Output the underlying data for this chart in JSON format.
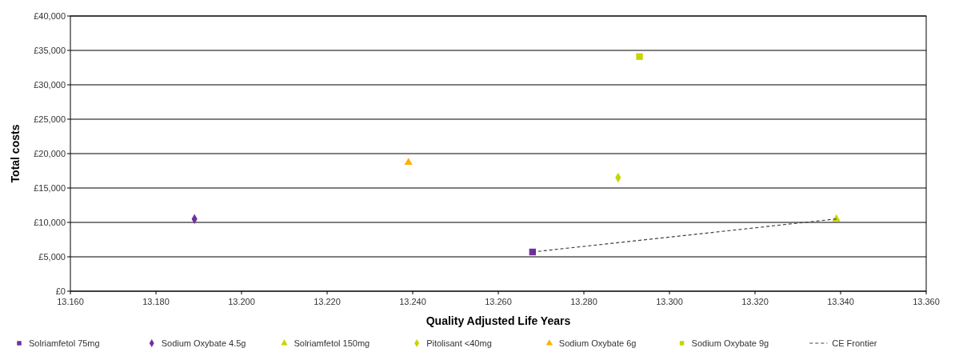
{
  "chart_data": {
    "type": "scatter",
    "xlabel": "Quality Adjusted Life Years",
    "ylabel": "Total costs",
    "xlim": [
      13.16,
      13.36
    ],
    "xticks": [
      {
        "value": 13.16,
        "label": "13.160"
      },
      {
        "value": 13.18,
        "label": "13.180"
      },
      {
        "value": 13.2,
        "label": "13.200"
      },
      {
        "value": 13.22,
        "label": "13.220"
      },
      {
        "value": 13.24,
        "label": "13.240"
      },
      {
        "value": 13.26,
        "label": "13.260"
      },
      {
        "value": 13.28,
        "label": "13.280"
      },
      {
        "value": 13.3,
        "label": "13.300"
      },
      {
        "value": 13.32,
        "label": "13.320"
      },
      {
        "value": 13.34,
        "label": "13.340"
      },
      {
        "value": 13.36,
        "label": "13.360"
      }
    ],
    "ylim": [
      0,
      40000
    ],
    "yticks": [
      {
        "value": 0,
        "label": "£0"
      },
      {
        "value": 5000,
        "label": "£5,000"
      },
      {
        "value": 10000,
        "label": "£10,000"
      },
      {
        "value": 15000,
        "label": "£15,000"
      },
      {
        "value": 20000,
        "label": "£20,000"
      },
      {
        "value": 25000,
        "label": "£25,000"
      },
      {
        "value": 30000,
        "label": "£30,000"
      },
      {
        "value": 35000,
        "label": "£35,000"
      },
      {
        "value": 40000,
        "label": "£40,000"
      }
    ],
    "grid": "y",
    "legend": "bottom",
    "series": [
      {
        "name": "Solriamfetol 75mg",
        "color": "#7030a0",
        "marker": "square",
        "x": [
          13.268
        ],
        "values": [
          5700
        ]
      },
      {
        "name": "Sodium Oxybate 4.5g",
        "color": "#7030a0",
        "marker": "diamond",
        "x": [
          13.189
        ],
        "values": [
          10500
        ]
      },
      {
        "name": "Solriamfetol 150mg",
        "color": "#c4d600",
        "marker": "triangle",
        "x": [
          13.339
        ],
        "values": [
          10500
        ]
      },
      {
        "name": "Pitolisant <40mg",
        "color": "#c4d600",
        "marker": "diamond",
        "x": [
          13.288
        ],
        "values": [
          16500
        ]
      },
      {
        "name": "Sodium Oxybate 6g",
        "color": "#ffb000",
        "marker": "triangle",
        "x": [
          13.239
        ],
        "values": [
          18700
        ]
      },
      {
        "name": "Sodium Oxybate 9g",
        "color": "#c4d600",
        "marker": "square",
        "x": [
          13.293
        ],
        "values": [
          34100
        ]
      },
      {
        "name": "CE Frontier",
        "type": "line",
        "color": "#404040",
        "line_style": "dashed",
        "marker": "none",
        "x": [
          13.268,
          13.339
        ],
        "values": [
          5700,
          10500
        ]
      }
    ]
  }
}
